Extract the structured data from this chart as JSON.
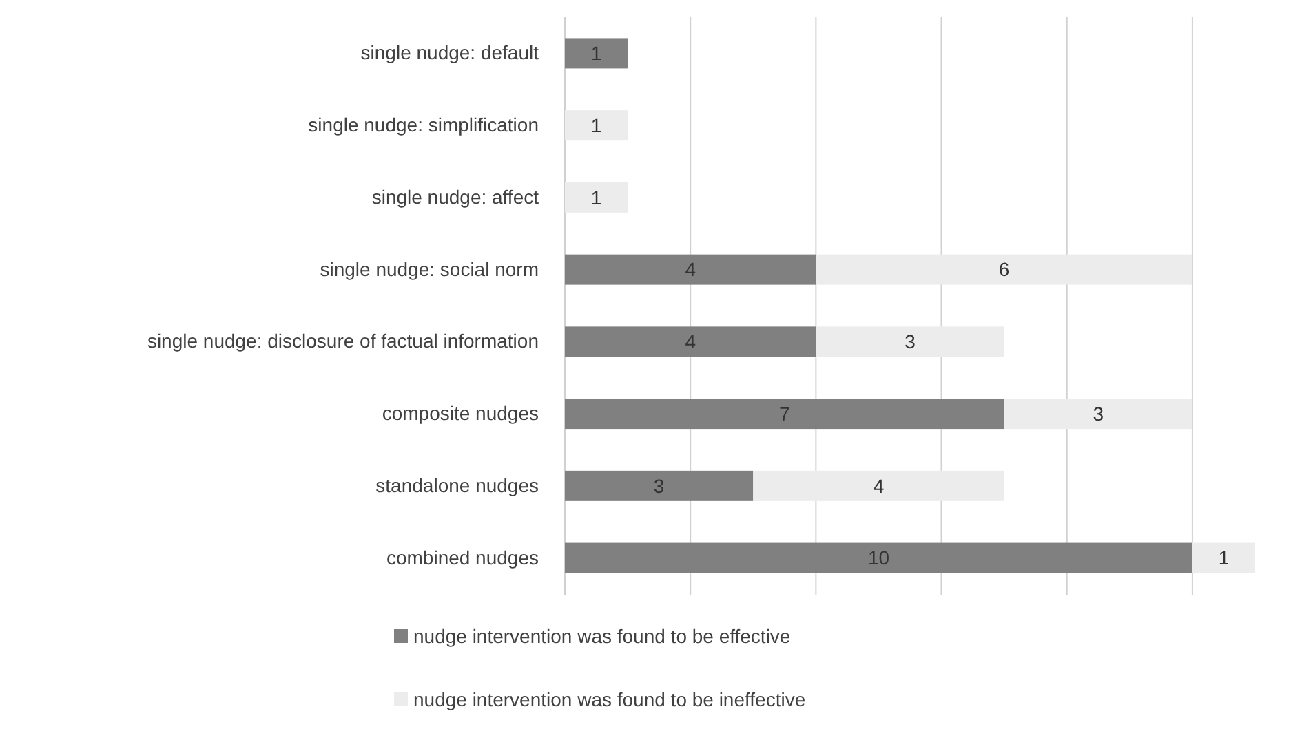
{
  "chart_data": {
    "type": "bar",
    "orientation": "horizontal",
    "stacked": true,
    "data_labels": true,
    "grid": "x",
    "legend": "bottom",
    "tick_labels": "y",
    "categories": [
      "single nudge: default",
      "single nudge: simplification",
      "single nudge: affect",
      "single nudge: social norm",
      "single nudge: disclosure of factual information",
      "composite nudges",
      "standalone nudges",
      "combined nudges"
    ],
    "xlim": [
      0,
      11
    ],
    "xticks": [
      {
        "value": 0,
        "label": null
      },
      {
        "value": 2,
        "label": null
      },
      {
        "value": 4,
        "label": null
      },
      {
        "value": 6,
        "label": null
      },
      {
        "value": 8,
        "label": null
      },
      {
        "value": 10,
        "label": null
      }
    ],
    "series": [
      {
        "name": "nudge intervention was found to be effective",
        "color": "#808080",
        "values": [
          1,
          null,
          null,
          4,
          4,
          7,
          3,
          10
        ]
      },
      {
        "name": "nudge intervention was found to be ineffective",
        "color": "#ececec",
        "values": [
          null,
          1,
          1,
          6,
          3,
          3,
          4,
          1
        ]
      }
    ]
  }
}
